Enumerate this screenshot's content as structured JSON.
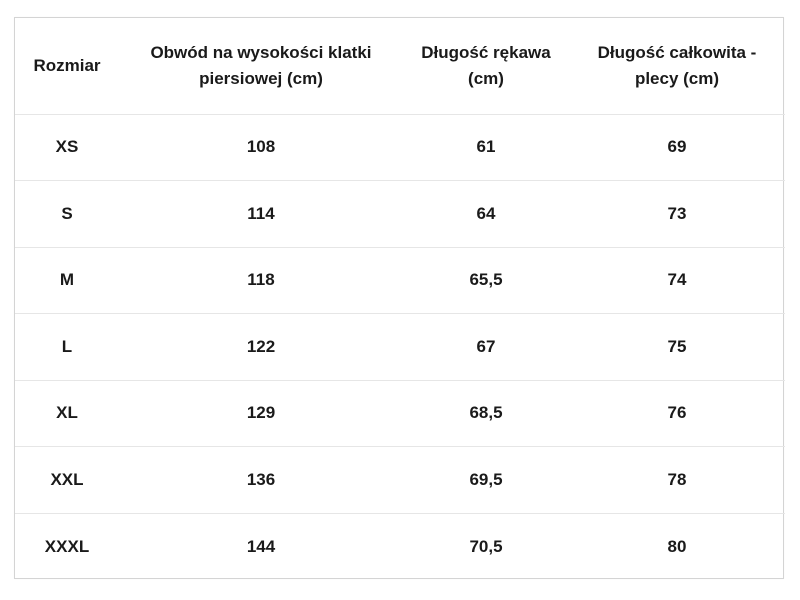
{
  "table": {
    "headers": [
      "Rozmiar",
      "Obwód na wysokości klatki piersiowej (cm)",
      "Długość rękawa (cm)",
      "Długość całkowita - plecy (cm)"
    ],
    "rows": [
      [
        "XS",
        "108",
        "61",
        "69"
      ],
      [
        "S",
        "114",
        "64",
        "73"
      ],
      [
        "M",
        "118",
        "65,5",
        "74"
      ],
      [
        "L",
        "122",
        "67",
        "75"
      ],
      [
        "XL",
        "129",
        "68,5",
        "76"
      ],
      [
        "XXL",
        "136",
        "69,5",
        "78"
      ],
      [
        "XXXL",
        "144",
        "70,5",
        "80"
      ]
    ]
  }
}
